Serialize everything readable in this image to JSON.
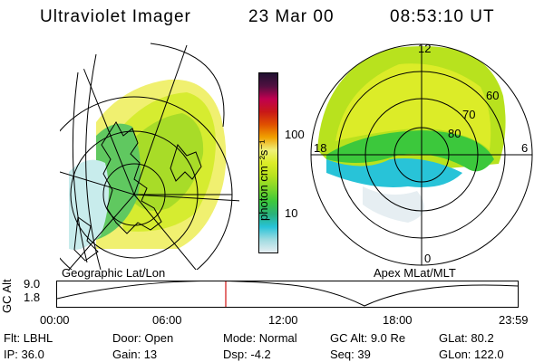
{
  "header": {
    "instrument": "Ultraviolet Imager",
    "date": "23 Mar 00",
    "time": "08:53:10 UT"
  },
  "panels": {
    "geographic_label": "Geographic Lat/Lon",
    "apex_label": "Apex MLat/MLT",
    "apex_mlt_labels": [
      "12",
      "18",
      "6",
      "0"
    ],
    "apex_lat_labels": [
      "60",
      "70",
      "80"
    ]
  },
  "colorbar": {
    "unit_label": "photon cm⁻²s⁻¹",
    "ticks": [
      "100",
      "10"
    ],
    "colors": [
      "#e6eef2",
      "#9fdbe0",
      "#28c3d8",
      "#2ab27a",
      "#3cc83c",
      "#7ed62a",
      "#b8e21e",
      "#dcec28",
      "#f0f078",
      "#f0a000",
      "#e05000",
      "#c81818",
      "#c00050",
      "#501040",
      "#201030"
    ]
  },
  "timeline": {
    "axis_label": "GC Alt",
    "y_ticks": [
      "9.0",
      "1.8"
    ],
    "x_ticks": [
      "00:00",
      "06:00",
      "12:00",
      "18:00",
      "23:59"
    ]
  },
  "footer": {
    "row1": [
      {
        "label": "Flt:",
        "value": "LBHL"
      },
      {
        "label": "Door:",
        "value": "Open"
      },
      {
        "label": "Mode:",
        "value": "Normal"
      },
      {
        "label": "GC Alt:",
        "value": "9.0 Re"
      },
      {
        "label": "GLat:",
        "value": "80.2"
      }
    ],
    "row2": [
      {
        "label": "IP:",
        "value": "36.0"
      },
      {
        "label": "Gain:",
        "value": "13"
      },
      {
        "label": "Dsp:",
        "value": "-4.2"
      },
      {
        "label": "Seq:",
        "value": "39"
      },
      {
        "label": "GLon:",
        "value": "122.0"
      }
    ]
  }
}
